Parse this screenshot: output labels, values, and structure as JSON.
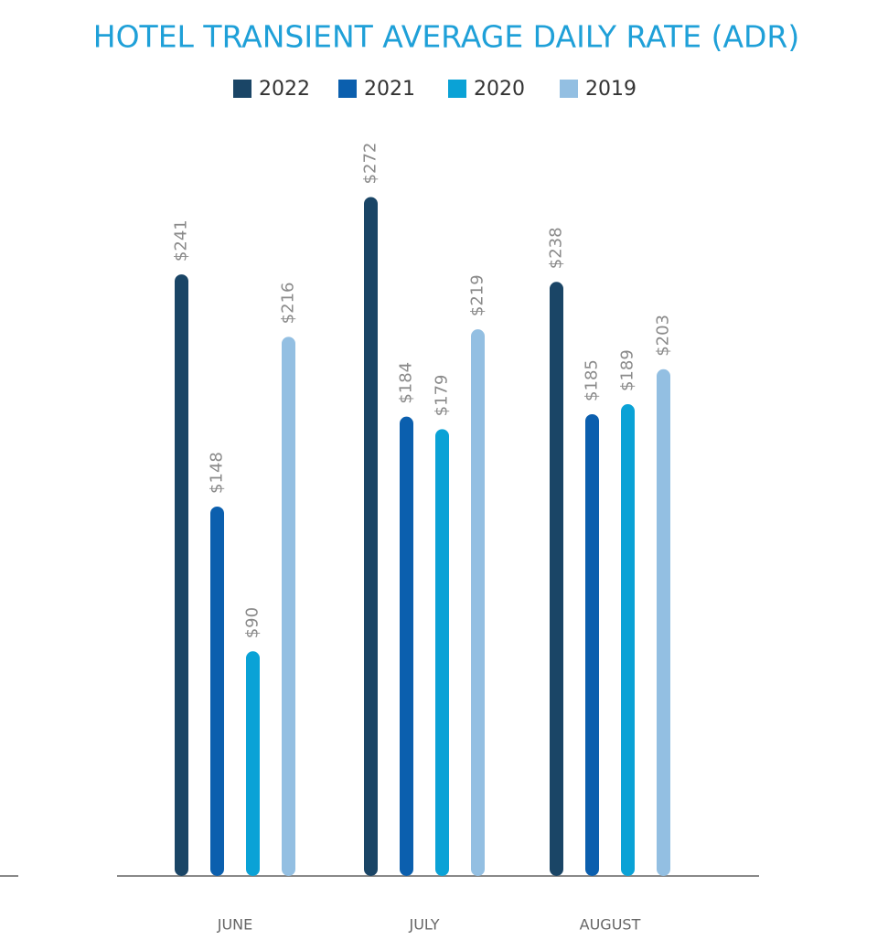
{
  "chart_data": {
    "type": "bar",
    "title": "HOTEL TRANSIENT AVERAGE DAILY RATE (ADR)",
    "categories": [
      "JUNE",
      "JULY",
      "AUGUST"
    ],
    "series": [
      {
        "name": "2022",
        "color": "#1a4566",
        "values": [
          241,
          272,
          238
        ],
        "value_labels": [
          "$241",
          "$272",
          "$238"
        ]
      },
      {
        "name": "2021",
        "color": "#0b5fae",
        "values": [
          148,
          184,
          185
        ],
        "value_labels": [
          "$148",
          "$184",
          "$185"
        ]
      },
      {
        "name": "2020",
        "color": "#0aa2d6",
        "values": [
          90,
          179,
          189
        ],
        "value_labels": [
          "$90",
          "$179",
          "$189"
        ]
      },
      {
        "name": "2019",
        "color": "#93bfe2",
        "values": [
          216,
          219,
          203
        ],
        "value_labels": [
          "$216",
          "$219",
          "$203"
        ]
      }
    ],
    "ylim": [
      0,
      300
    ],
    "legend": "top"
  }
}
